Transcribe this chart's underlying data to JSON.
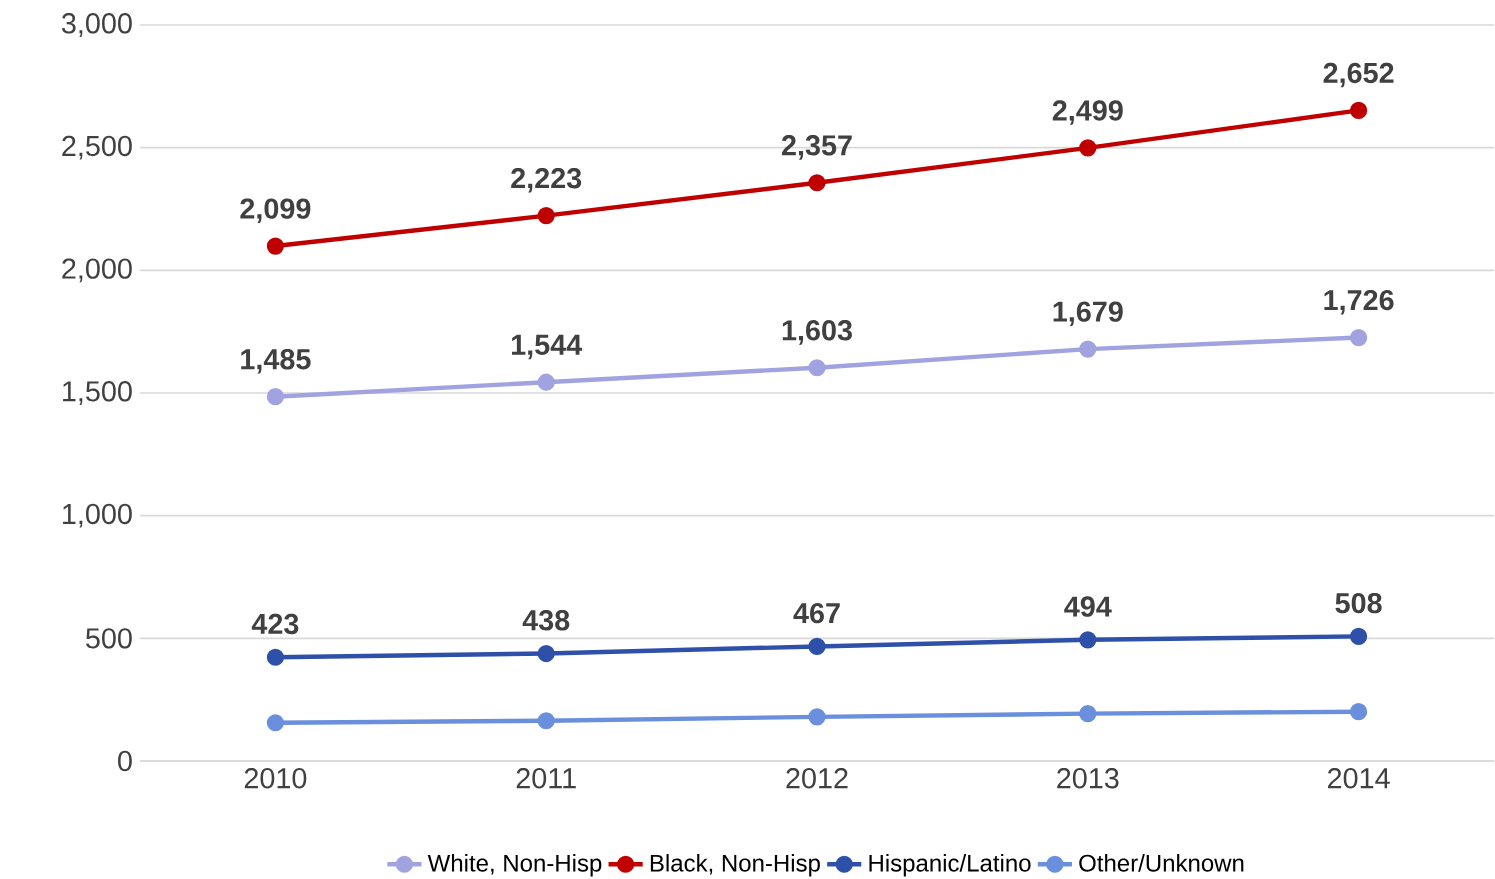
{
  "chart_data": {
    "type": "line",
    "categories": [
      "2010",
      "2011",
      "2012",
      "2013",
      "2014"
    ],
    "series": [
      {
        "name": "White, Non-Hisp",
        "color": "#a0a3e0",
        "values": [
          1485,
          1544,
          1603,
          1679,
          1726
        ],
        "value_labels": [
          "1,485",
          "1,544",
          "1,603",
          "1,679",
          "1,726"
        ]
      },
      {
        "name": "Black, Non-Hisp",
        "color": "#c00000",
        "values": [
          2099,
          2223,
          2357,
          2499,
          2652
        ],
        "value_labels": [
          "2,099",
          "2,223",
          "2,357",
          "2,499",
          "2,652"
        ]
      },
      {
        "name": "Hispanic/Latino",
        "color": "#2f50a8",
        "values": [
          423,
          438,
          467,
          494,
          508
        ],
        "value_labels": [
          "423",
          "438",
          "467",
          "494",
          "508"
        ]
      },
      {
        "name": "Other/Unknown",
        "color": "#6a8fdc",
        "values": [
          156,
          164,
          180,
          193,
          201
        ]
      }
    ],
    "ylim": [
      0,
      3000
    ],
    "yticks": [
      0,
      500,
      {
        "value": 1000,
        "label": "1,000"
      },
      {
        "value": 1500,
        "label": "1,500"
      },
      {
        "value": 2000,
        "label": "2,000"
      },
      {
        "value": 2500,
        "label": "2,500"
      },
      {
        "value": 3000,
        "label": "3,000"
      }
    ],
    "grid": "y",
    "legend": "bottom",
    "marker": "circle",
    "line_style": "solid"
  }
}
